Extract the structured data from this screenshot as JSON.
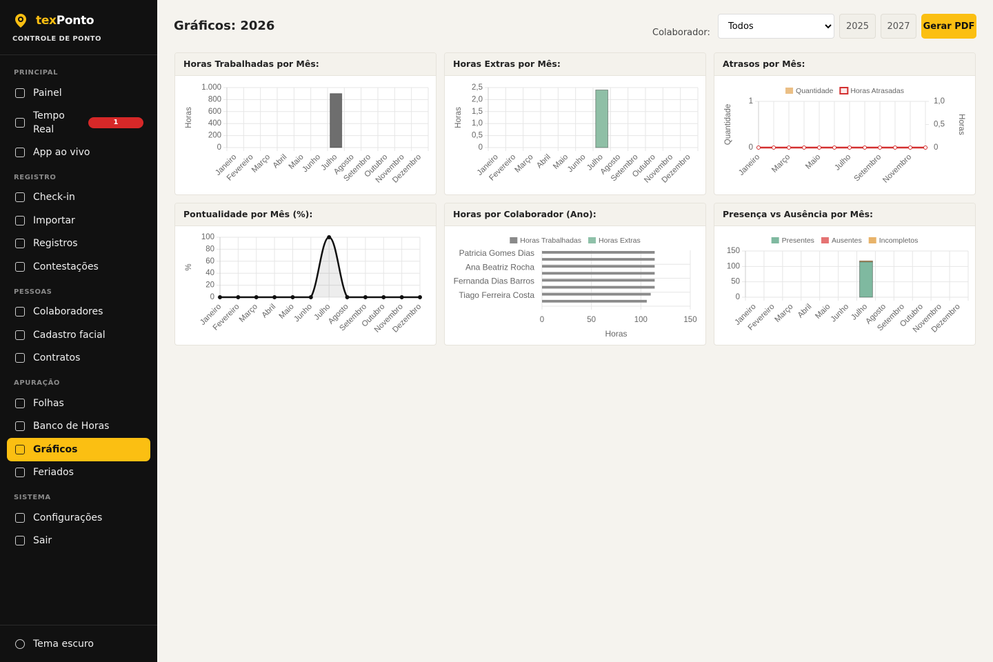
{
  "sidebar": {
    "brand_prefix": "tex",
    "brand_name": "Ponto",
    "subtitle": "CONTROLE DE PONTO",
    "sections": [
      {
        "title": "PRINCIPAL",
        "items": [
          {
            "label": "Painel"
          },
          {
            "label": "Tempo Real",
            "badge": 1
          },
          {
            "label": "App ao vivo"
          }
        ]
      },
      {
        "title": "REGISTRO",
        "items": [
          {
            "label": "Check-in"
          },
          {
            "label": "Importar"
          },
          {
            "label": "Registros"
          },
          {
            "label": "Contestações"
          }
        ]
      },
      {
        "title": "PESSOAS",
        "items": [
          {
            "label": "Colaboradores"
          },
          {
            "label": "Cadastro facial"
          },
          {
            "label": "Contratos"
          }
        ]
      },
      {
        "title": "APURAÇÃO",
        "items": [
          {
            "label": "Folhas"
          },
          {
            "label": "Banco de Horas"
          },
          {
            "label": "Gráficos",
            "active": true
          },
          {
            "label": "Feriados"
          }
        ]
      },
      {
        "title": "SISTEMA",
        "items": [
          {
            "label": "Configurações"
          },
          {
            "label": "Sair"
          }
        ]
      }
    ],
    "footer": "Tema escuro"
  },
  "header": {
    "title": "Gráficos: 2026",
    "filter_label": "Colaborador:",
    "select_value": "Todos",
    "prev_year": "2025",
    "next_year": "2027",
    "pdf_button": "Gerar PDF"
  },
  "chart_data": [
    {
      "type": "bar",
      "title": "Horas Trabalhadas por Mês:",
      "y_label": "Horas",
      "categories": [
        "Janeiro",
        "Fevereiro",
        "Março",
        "Abril",
        "Maio",
        "Junho",
        "Julho",
        "Agosto",
        "Setembro",
        "Outubro",
        "Novembro",
        "Dezembro"
      ],
      "values": [
        0,
        0,
        0,
        0,
        0,
        0,
        900,
        0,
        0,
        0,
        0,
        0
      ],
      "color": "#6e6e6e",
      "ylim": [
        0,
        1000
      ],
      "yticks": [
        0,
        200,
        400,
        600,
        800,
        {
          "value": 1000,
          "label": "1.000"
        }
      ],
      "grid": true
    },
    {
      "type": "bar",
      "title": "Horas Extras por Mês:",
      "y_label": "Horas",
      "categories": [
        "Janeiro",
        "Fevereiro",
        "Março",
        "Abril",
        "Maio",
        "Junho",
        "Julho",
        "Agosto",
        "Setembro",
        "Outubro",
        "Novembro",
        "Dezembro"
      ],
      "values": [
        0,
        0,
        0,
        0,
        0,
        0,
        2.4,
        0,
        0,
        0,
        0,
        0
      ],
      "color": "#8fbfa6",
      "ylim": [
        0,
        2.5
      ],
      "yticks": [
        0,
        {
          "value": 0.5,
          "label": "0,5"
        },
        {
          "value": 1,
          "label": "1,0"
        },
        {
          "value": 1.5,
          "label": "1,5"
        },
        {
          "value": 2,
          "label": "2,0"
        },
        {
          "value": 2.5,
          "label": "2,5"
        }
      ],
      "grid": true
    },
    {
      "type": "line",
      "title": "Atrasos por Mês:",
      "y_label": "Quantidade",
      "y2_label": "Horas",
      "categories": [
        "Janeiro",
        null,
        "Março",
        null,
        "Maio",
        null,
        "Julho",
        null,
        "Setembro",
        null,
        "Novembro",
        null
      ],
      "series": [
        {
          "name": "Quantidade",
          "type": "bar",
          "color": "#ebbf85",
          "values": [
            0,
            0,
            0,
            0,
            0,
            0,
            0,
            0,
            0,
            0,
            0,
            0
          ]
        },
        {
          "name": "Horas Atrasadas",
          "type": "line",
          "axis": "y2",
          "color": "#d32f2f",
          "values": [
            0,
            0,
            0,
            0,
            0,
            0,
            0,
            0,
            0,
            0,
            0,
            0
          ]
        }
      ],
      "ylim": [
        0,
        1
      ],
      "yticks": [
        0,
        1
      ],
      "y2lim": [
        0,
        1
      ],
      "y2ticks": [
        0,
        {
          "value": 0.5,
          "label": "0,5"
        },
        {
          "value": 1,
          "label": "1,0"
        }
      ],
      "legend": "top",
      "grid": true
    },
    {
      "type": "line",
      "title": "Pontualidade por Mês (%):",
      "y_label": "%",
      "categories": [
        "Janeiro",
        "Fevereiro",
        "Março",
        "Abril",
        "Maio",
        "Junho",
        "Julho",
        "Agosto",
        "Setembro",
        "Outubro",
        "Novembro",
        "Dezembro"
      ],
      "values": [
        0,
        0,
        0,
        0,
        0,
        0,
        100,
        0,
        0,
        0,
        0,
        0
      ],
      "color": "#111111",
      "smooth": true,
      "fill": true,
      "ylim": [
        0,
        100
      ],
      "yticks": [
        0,
        20,
        40,
        60,
        80,
        100
      ],
      "grid": true
    },
    {
      "type": "bar",
      "horizontal": true,
      "title": "Horas por Colaborador (Ano):",
      "x_label": "Horas",
      "categories": [
        "Patricia Gomes Dias",
        null,
        "Ana Beatriz Rocha",
        null,
        "Fernanda Dias Barros",
        null,
        "Tiago Ferreira Costa",
        null
      ],
      "series": [
        {
          "name": "Horas Trabalhadas",
          "color": "#8a8a8a",
          "values": [
            114,
            114,
            114,
            114,
            114,
            114,
            110,
            106
          ]
        },
        {
          "name": "Horas Extras",
          "color": "#8fc1a9",
          "values": [
            0,
            0,
            0,
            0,
            0,
            0,
            0,
            0
          ]
        }
      ],
      "xlim": [
        0,
        150
      ],
      "xticks": [
        0,
        50,
        100,
        150
      ],
      "legend": "top",
      "grid": true
    },
    {
      "type": "bar",
      "stacked": true,
      "title": "Presença vs Ausência por Mês:",
      "categories": [
        "Janeiro",
        "Fevereiro",
        "Março",
        "Abril",
        "Maio",
        "Junho",
        "Julho",
        "Agosto",
        "Setembro",
        "Outubro",
        "Novembro",
        "Dezembro"
      ],
      "series": [
        {
          "name": "Presentes",
          "color": "#7fb9a0",
          "values": [
            0,
            0,
            0,
            0,
            0,
            0,
            115,
            0,
            0,
            0,
            0,
            0
          ]
        },
        {
          "name": "Ausentes",
          "color": "#e57373",
          "values": [
            0,
            0,
            0,
            0,
            0,
            0,
            0,
            0,
            0,
            0,
            0,
            0
          ]
        },
        {
          "name": "Incompletos",
          "color": "#e8b36a",
          "values": [
            0,
            0,
            0,
            0,
            0,
            0,
            3,
            0,
            0,
            0,
            0,
            0
          ]
        }
      ],
      "ylim": [
        0,
        150
      ],
      "yticks": [
        0,
        50,
        100,
        150
      ],
      "legend": "top",
      "grid": true
    }
  ]
}
